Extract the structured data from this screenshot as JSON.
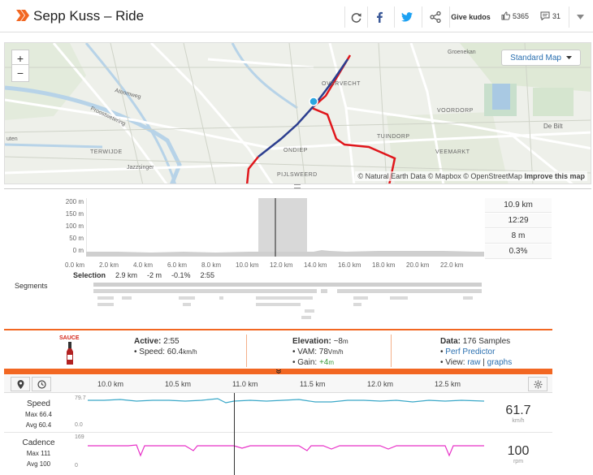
{
  "header": {
    "title": "Sepp Kuss – Ride",
    "give_kudos": "Give kudos",
    "kudos_count": "5365",
    "comment_count": "31",
    "icons": [
      "refresh-icon",
      "facebook-icon",
      "twitter-icon",
      "share-icon",
      "thumbs-up-icon",
      "comment-icon",
      "chevron-down-icon"
    ]
  },
  "map": {
    "zoom_in": "+",
    "zoom_out": "−",
    "style_label": "Standard Map",
    "attribution": "© Natural Earth Data © Mapbox © OpenStreetMap",
    "improve": "Improve this map",
    "labels": [
      "Groenekan",
      "OVERVECHT",
      "VOORDORP",
      "De Bilt",
      "TUINDORP",
      "VEEMARKT",
      "ONDIEP",
      "PIJLSWEERD",
      "TERWIJDE",
      "Atoomweg",
      "Proostwetering",
      "Jazzsinger",
      "uten"
    ]
  },
  "elevation": {
    "y_ticks": [
      "200 m",
      "150 m",
      "100 m",
      "50 m",
      "0 m"
    ],
    "x_ticks": [
      "0.0 km",
      "2.0 km",
      "4.0 km",
      "6.0 km",
      "8.0 km",
      "10.0 km",
      "12.0 km",
      "14.0 km",
      "16.0 km",
      "18.0 km",
      "20.0 km",
      "22.0 km"
    ],
    "stats": [
      "10.9 km",
      "12:29",
      "8 m",
      "0.3%"
    ],
    "selection": {
      "label": "Selection",
      "distance": "2.9 km",
      "elev": "-2 m",
      "grade": "-0.1%",
      "time": "2:55"
    },
    "segments_label": "Segments"
  },
  "summary": {
    "sauce": "SAUCE",
    "active_label": "Active:",
    "active_value": "2:55",
    "speed_label": "Speed:",
    "speed_value": "60.4",
    "speed_unit": "km/h",
    "elevation_label": "Elevation:",
    "elevation_value": "~8",
    "elevation_unit": "m",
    "vam_label": "VAM:",
    "vam_value": "78",
    "vam_unit": "Vm/h",
    "gain_label": "Gain:",
    "gain_value": "+4",
    "gain_unit": "m",
    "data_label": "Data:",
    "data_value": "176 Samples",
    "perf_predictor": "Perf Predictor",
    "view_label": "View:",
    "view_raw": "raw",
    "view_sep": "|",
    "view_graphs": "graphs"
  },
  "analysis": {
    "x_ticks": [
      "10.0 km",
      "10.5 km",
      "11.0 km",
      "11.5 km",
      "12.0 km",
      "12.5 km"
    ],
    "speed": {
      "label": "Speed",
      "max": "Max 66.4",
      "avg": "Avg 60.4",
      "top": "79.7",
      "bottom": "0.0",
      "value": "61.7",
      "unit": "km/h"
    },
    "cadence": {
      "label": "Cadence",
      "max": "Max 111",
      "avg": "Avg 100",
      "top": "169",
      "bottom": "0",
      "value": "100",
      "unit": "rpm"
    }
  },
  "colors": {
    "strava_orange": "#f26722",
    "route_red": "#e0161b",
    "route_blue": "#2c3e8f",
    "speed_line": "#3aa8c8",
    "cadence_line": "#e832c8"
  }
}
